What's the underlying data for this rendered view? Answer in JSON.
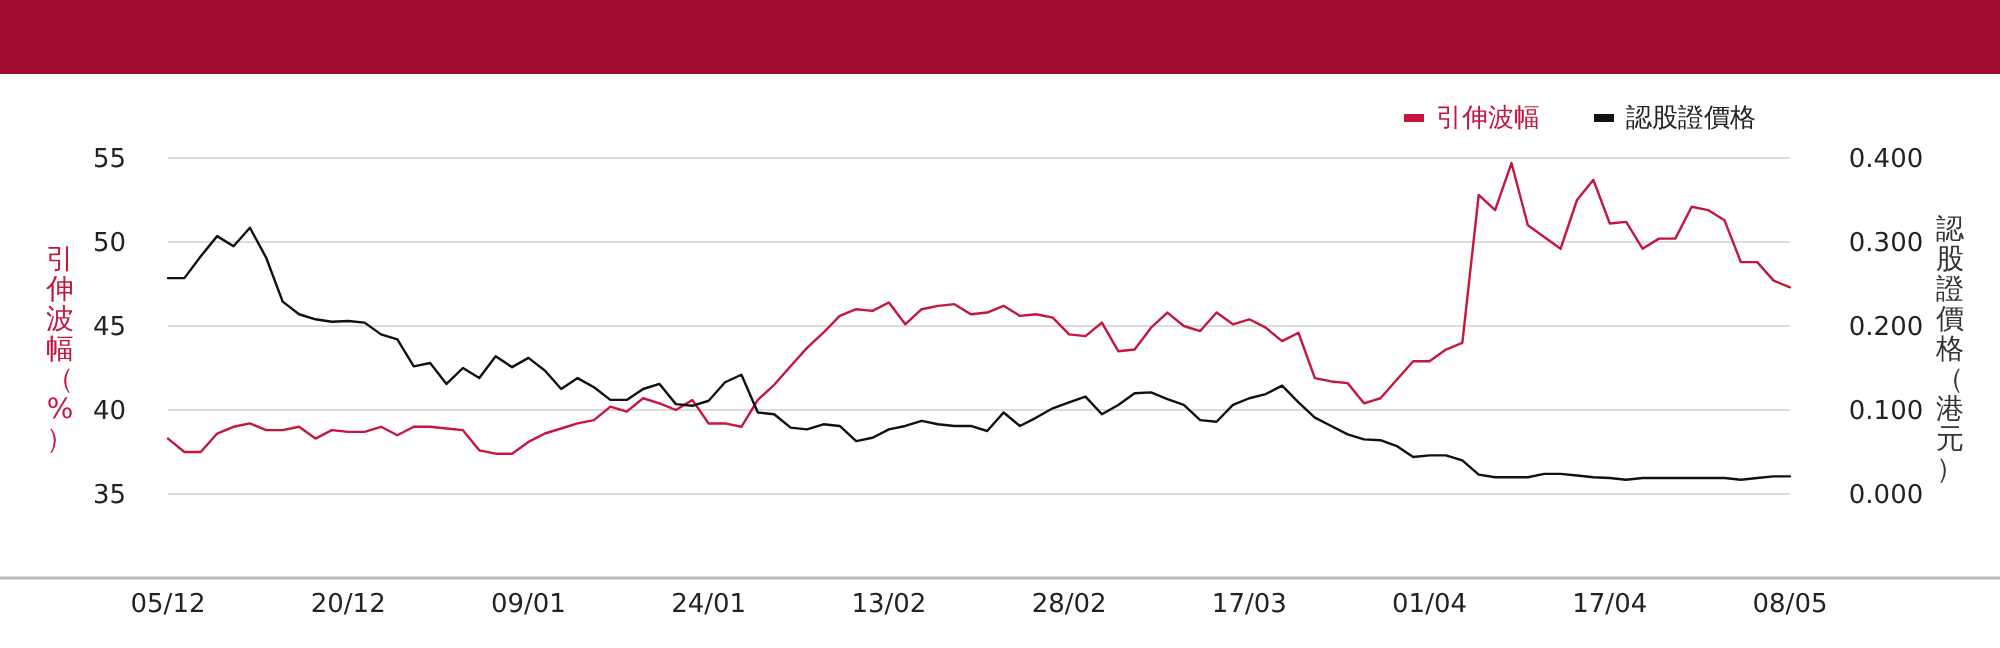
{
  "chart_data": {
    "type": "line",
    "ylabel": "引伸波幅（%）",
    "y2label": "認股證價格（港元）",
    "categories": [
      "05/12",
      null,
      null,
      null,
      null,
      null,
      null,
      null,
      null,
      null,
      null,
      "20/12",
      null,
      null,
      null,
      null,
      null,
      null,
      null,
      null,
      null,
      null,
      "09/01",
      null,
      null,
      null,
      null,
      null,
      null,
      null,
      null,
      null,
      null,
      "24/01",
      null,
      null,
      null,
      null,
      null,
      null,
      null,
      null,
      null,
      null,
      "13/02",
      null,
      null,
      null,
      null,
      null,
      null,
      null,
      null,
      null,
      null,
      "28/02",
      null,
      null,
      null,
      null,
      null,
      null,
      null,
      null,
      null,
      null,
      "17/03",
      null,
      null,
      null,
      null,
      null,
      null,
      null,
      null,
      null,
      null,
      "01/04",
      null,
      null,
      null,
      null,
      null,
      null,
      null,
      null,
      null,
      null,
      "17/04",
      null,
      null,
      null,
      null,
      null,
      null,
      null,
      null,
      null,
      null,
      "08/05"
    ],
    "series": [
      {
        "name": "引伸波幅",
        "color": "#c4163f",
        "values": [
          38.3,
          37.5,
          37.5,
          38.6,
          39.0,
          39.2,
          38.8,
          38.8,
          39.0,
          38.3,
          38.8,
          38.7,
          38.7,
          39.0,
          38.5,
          39.0,
          39.0,
          38.9,
          38.8,
          37.6,
          37.4,
          37.4,
          38.1,
          38.6,
          38.9,
          39.2,
          39.4,
          40.2,
          39.9,
          40.7,
          40.4,
          40.0,
          40.6,
          39.2,
          39.2,
          39.0,
          40.6,
          41.5,
          42.6,
          43.7,
          44.6,
          45.6,
          46.0,
          45.9,
          46.4,
          45.1,
          46.0,
          46.2,
          46.3,
          45.7,
          45.8,
          46.2,
          45.6,
          45.7,
          45.5,
          44.5,
          44.4,
          45.2,
          43.5,
          43.6,
          44.9,
          45.8,
          45.0,
          44.7,
          45.8,
          45.1,
          45.4,
          44.9,
          44.1,
          44.6,
          41.9,
          41.7,
          41.6,
          40.4,
          40.7,
          41.8,
          42.9,
          42.9,
          43.6,
          44.0,
          52.8,
          51.9,
          54.7,
          51.0,
          50.3,
          49.6,
          52.5,
          53.7,
          51.1,
          51.2,
          49.6,
          50.2,
          50.2,
          52.1,
          51.9,
          51.3,
          48.8,
          48.8,
          47.7,
          47.3
        ]
      },
      {
        "name": "認股證價格",
        "color": "#111111",
        "axis": "y2",
        "values": [
          0.257,
          0.257,
          0.283,
          0.307,
          0.295,
          0.317,
          0.281,
          0.229,
          0.214,
          0.208,
          0.205,
          0.206,
          0.204,
          0.19,
          0.184,
          0.152,
          0.156,
          0.131,
          0.15,
          0.138,
          0.164,
          0.151,
          0.162,
          0.147,
          0.125,
          0.138,
          0.127,
          0.112,
          0.112,
          0.125,
          0.131,
          0.107,
          0.105,
          0.111,
          0.133,
          0.142,
          0.097,
          0.095,
          0.079,
          0.077,
          0.083,
          0.081,
          0.063,
          0.067,
          0.077,
          0.081,
          0.087,
          0.083,
          0.081,
          0.081,
          0.075,
          0.097,
          0.081,
          0.091,
          0.102,
          0.109,
          0.116,
          0.095,
          0.106,
          0.12,
          0.121,
          0.113,
          0.106,
          0.088,
          0.086,
          0.106,
          0.114,
          0.119,
          0.129,
          0.109,
          0.091,
          0.081,
          0.071,
          0.065,
          0.064,
          0.057,
          0.044,
          0.046,
          0.046,
          0.04,
          0.023,
          0.02,
          0.02,
          0.02,
          0.024,
          0.024,
          0.022,
          0.02,
          0.019,
          0.017,
          0.019,
          0.019,
          0.019,
          0.019,
          0.019,
          0.019,
          0.017,
          0.019,
          0.021,
          0.021
        ]
      }
    ],
    "ylim": [
      30,
      55
    ],
    "yticks": [
      35,
      40,
      45,
      50,
      55
    ],
    "y2lim": [
      -0.1,
      0.4
    ],
    "y2ticks": [
      {
        "value": 0,
        "label": "0.000"
      },
      {
        "value": 0.1,
        "label": "0.100"
      },
      {
        "value": 0.2,
        "label": "0.200"
      },
      {
        "value": 0.3,
        "label": "0.300"
      },
      {
        "value": 0.4,
        "label": "0.400"
      }
    ],
    "grid": "y",
    "legend": "top right",
    "marker": "none",
    "line_style": "solid"
  }
}
